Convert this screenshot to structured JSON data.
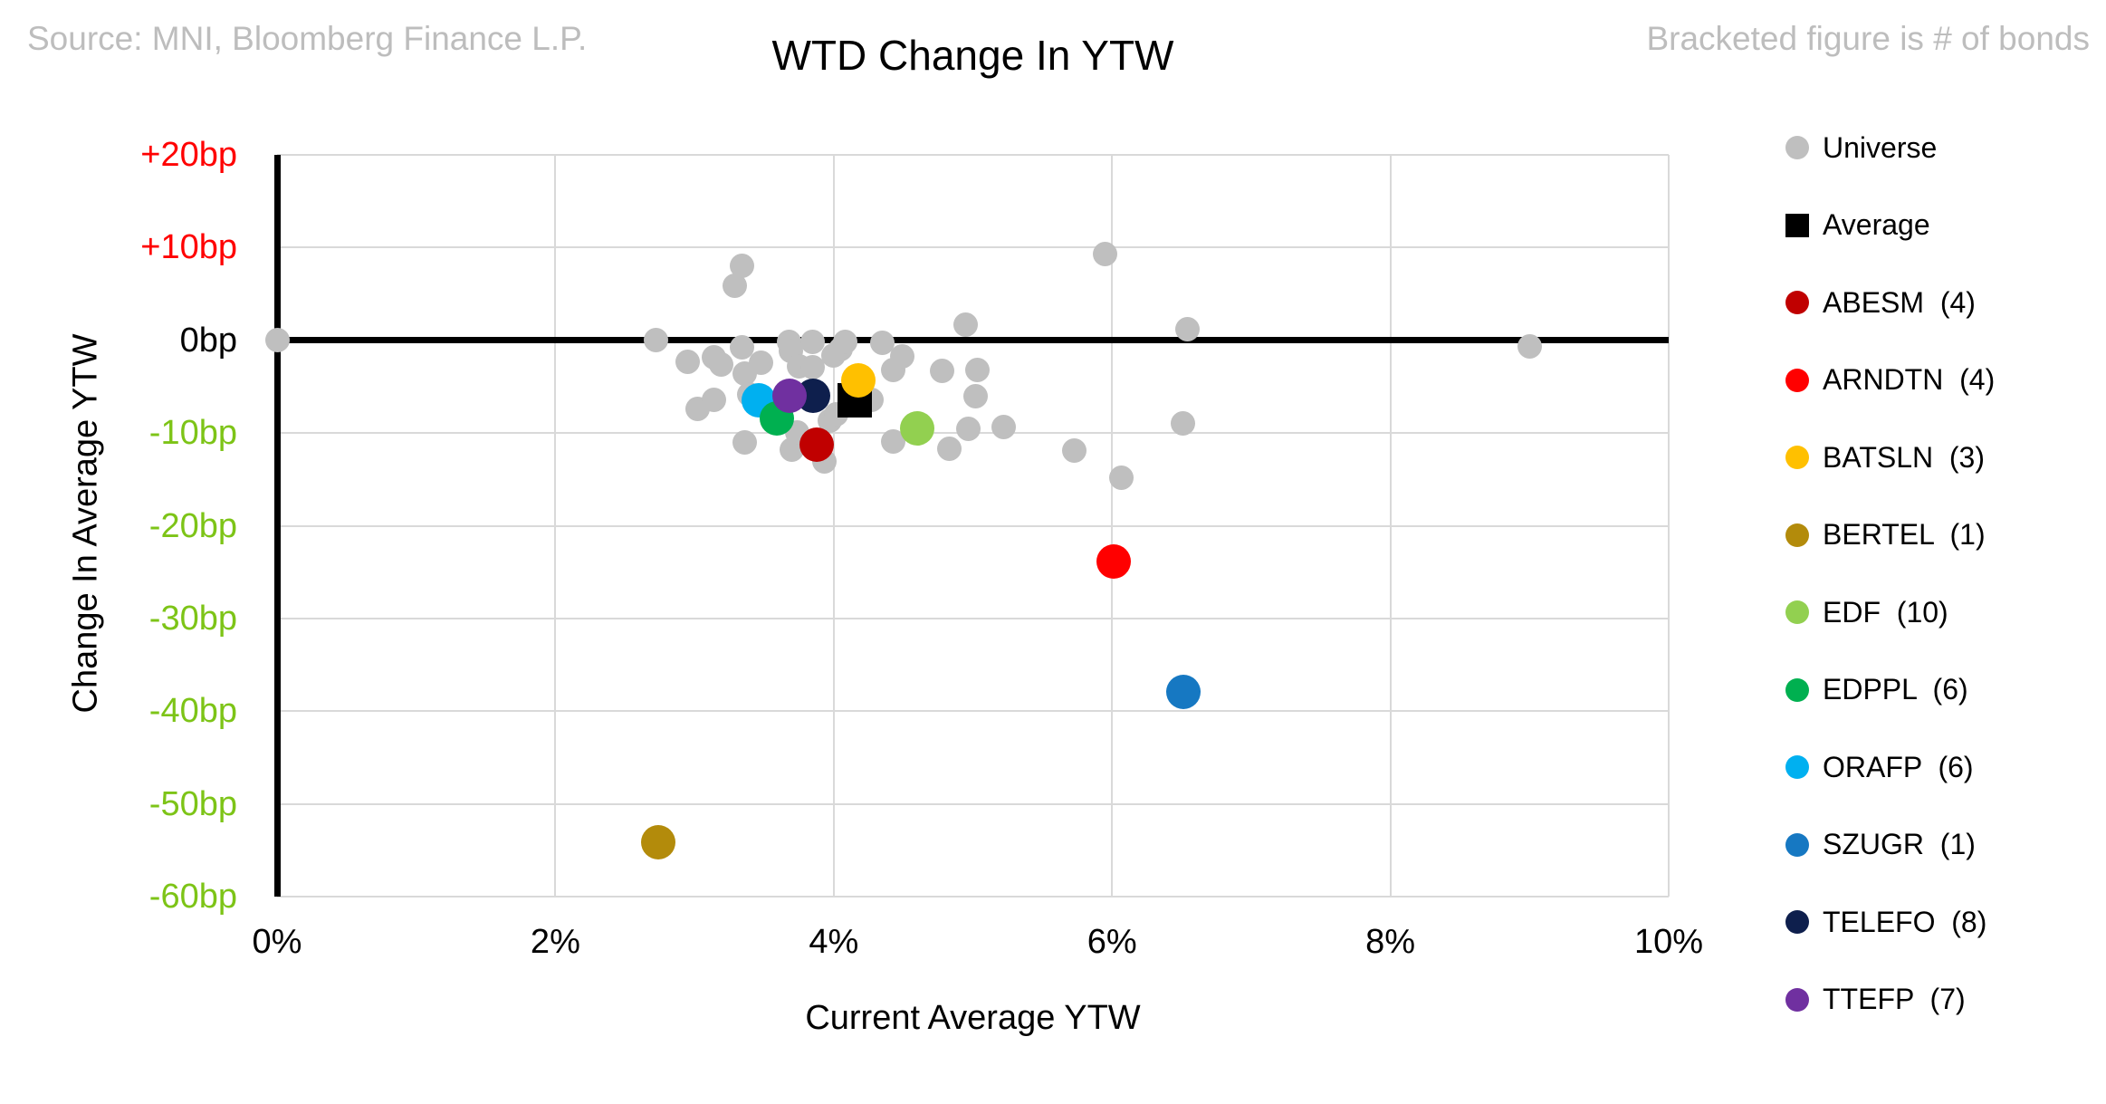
{
  "header": {
    "source": "Source: MNI, Bloomberg Finance L.P.",
    "note": "Bracketed figure is # of bonds"
  },
  "colors": {
    "background": "#FFFFFF",
    "gridline": "#D9D9D9",
    "axis_line": "#000000",
    "header_gray": "#BDBDBD",
    "tick_positive": "#FF0000",
    "tick_zero": "#000000",
    "tick_negative": "#7DC417",
    "universe_gray": "#BFBFBF"
  },
  "chart_data": {
    "type": "scatter",
    "title": "WTD Change In YTW",
    "xlabel": "Current Average YTW",
    "ylabel": "Change In Average YTW",
    "xlim": [
      0,
      10
    ],
    "ylim": [
      -60,
      20
    ],
    "grid": true,
    "legend_position": "right",
    "x_ticks": [
      {
        "value": 0,
        "label": "0%"
      },
      {
        "value": 2,
        "label": "2%"
      },
      {
        "value": 4,
        "label": "4%"
      },
      {
        "value": 6,
        "label": "6%"
      },
      {
        "value": 8,
        "label": "8%"
      },
      {
        "value": 10,
        "label": "10%"
      }
    ],
    "y_ticks": [
      {
        "value": 20,
        "label": "+20bp",
        "color": "#FF0000"
      },
      {
        "value": 10,
        "label": "+10bp",
        "color": "#FF0000"
      },
      {
        "value": 0,
        "label": "0bp",
        "color": "#000000"
      },
      {
        "value": -10,
        "label": "-10bp",
        "color": "#7DC417"
      },
      {
        "value": -20,
        "label": "-20bp",
        "color": "#7DC417"
      },
      {
        "value": -30,
        "label": "-30bp",
        "color": "#7DC417"
      },
      {
        "value": -40,
        "label": "-40bp",
        "color": "#7DC417"
      },
      {
        "value": -50,
        "label": "-50bp",
        "color": "#7DC417"
      },
      {
        "value": -60,
        "label": "-60bp",
        "color": "#7DC417"
      }
    ],
    "series": [
      {
        "name": "Universe",
        "legend": "Universe",
        "marker": "circle",
        "color": "#BFBFBF",
        "size": 27,
        "z": 1,
        "points": [
          [
            0.0,
            0.0
          ],
          [
            2.72,
            0.0
          ],
          [
            2.95,
            -2.3
          ],
          [
            3.02,
            -7.4
          ],
          [
            3.14,
            -1.8
          ],
          [
            3.14,
            -6.4
          ],
          [
            3.19,
            -2.6
          ],
          [
            3.29,
            5.9
          ],
          [
            3.34,
            8.0
          ],
          [
            3.34,
            -0.8
          ],
          [
            3.36,
            -3.6
          ],
          [
            3.36,
            -11.0
          ],
          [
            3.39,
            -5.8
          ],
          [
            3.48,
            -2.4
          ],
          [
            3.68,
            -0.2
          ],
          [
            3.69,
            -1.1
          ],
          [
            3.7,
            -11.8
          ],
          [
            3.74,
            -9.9
          ],
          [
            3.75,
            -2.8
          ],
          [
            3.85,
            -0.2
          ],
          [
            3.85,
            -2.9
          ],
          [
            3.93,
            -13.1
          ],
          [
            3.97,
            -8.7
          ],
          [
            4.0,
            -1.6
          ],
          [
            4.02,
            -8.0
          ],
          [
            4.05,
            -1.0
          ],
          [
            4.08,
            -0.2
          ],
          [
            4.27,
            -6.4
          ],
          [
            4.35,
            -0.3
          ],
          [
            4.43,
            -3.2
          ],
          [
            4.43,
            -10.9
          ],
          [
            4.49,
            -1.7
          ],
          [
            4.78,
            -3.3
          ],
          [
            4.83,
            -11.7
          ],
          [
            4.95,
            1.7
          ],
          [
            4.97,
            -9.5
          ],
          [
            5.02,
            -6.0
          ],
          [
            5.03,
            -3.2
          ],
          [
            5.22,
            -9.4
          ],
          [
            5.73,
            -11.9
          ],
          [
            5.95,
            9.3
          ],
          [
            6.07,
            -14.8
          ],
          [
            6.51,
            -9.0
          ],
          [
            6.54,
            1.2
          ],
          [
            9.0,
            -0.7
          ]
        ]
      },
      {
        "name": "Average",
        "legend": "Average",
        "marker": "square",
        "color": "#000000",
        "size": 38,
        "z": 2,
        "points": [
          [
            4.15,
            -6.5
          ]
        ]
      },
      {
        "name": "ABESM",
        "legend": "ABESM  (4)",
        "count": 4,
        "marker": "circle",
        "color": "#C00000",
        "size": 38,
        "z": 3,
        "points": [
          [
            3.88,
            -11.3
          ]
        ]
      },
      {
        "name": "ARNDTN",
        "legend": "ARNDTN  (4)",
        "count": 4,
        "marker": "circle",
        "color": "#FF0000",
        "size": 38,
        "z": 3,
        "points": [
          [
            6.01,
            -23.9
          ]
        ]
      },
      {
        "name": "BATSLN",
        "legend": "BATSLN  (3)",
        "count": 3,
        "marker": "circle",
        "color": "#FFC000",
        "size": 38,
        "z": 6,
        "points": [
          [
            4.18,
            -4.3
          ]
        ]
      },
      {
        "name": "BERTEL",
        "legend": "BERTEL  (1)",
        "count": 1,
        "marker": "circle",
        "color": "#B38B0B",
        "size": 38,
        "z": 3,
        "points": [
          [
            2.74,
            -54.1
          ]
        ]
      },
      {
        "name": "EDF",
        "legend": "EDF  (10)",
        "count": 10,
        "marker": "circle",
        "color": "#92D050",
        "size": 38,
        "z": 3,
        "points": [
          [
            4.6,
            -9.5
          ]
        ]
      },
      {
        "name": "EDPPL",
        "legend": "EDPPL  (6)",
        "count": 6,
        "marker": "circle",
        "color": "#00B050",
        "size": 38,
        "z": 5,
        "points": [
          [
            3.59,
            -8.4
          ]
        ]
      },
      {
        "name": "ORAFP",
        "legend": "ORAFP  (6)",
        "count": 6,
        "marker": "circle",
        "color": "#00B0F0",
        "size": 38,
        "z": 4,
        "points": [
          [
            3.46,
            -6.5
          ]
        ]
      },
      {
        "name": "SZUGR",
        "legend": "SZUGR  (1)",
        "count": 1,
        "marker": "circle",
        "color": "#1678C2",
        "size": 38,
        "z": 3,
        "points": [
          [
            6.51,
            -37.9
          ]
        ]
      },
      {
        "name": "TELEFO",
        "legend": "TELEFO  (8)",
        "count": 8,
        "marker": "circle",
        "color": "#0E1F4D",
        "size": 38,
        "z": 4,
        "points": [
          [
            3.85,
            -6.0
          ]
        ]
      },
      {
        "name": "TTEFP",
        "legend": "TTEFP  (7)",
        "count": 7,
        "marker": "circle",
        "color": "#7030A0",
        "size": 38,
        "z": 5,
        "points": [
          [
            3.68,
            -6.0
          ]
        ]
      }
    ]
  }
}
